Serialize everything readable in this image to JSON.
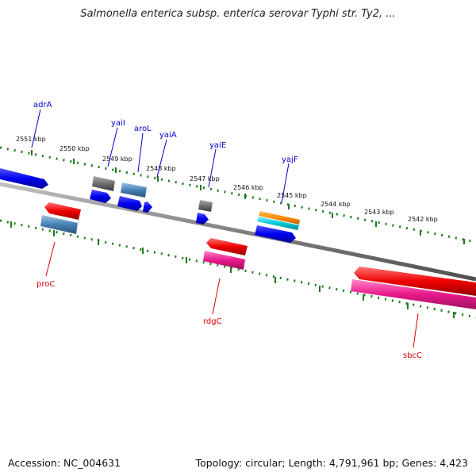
{
  "title": "Salmonella enterica subsp. enterica serovar Typhi str. Ty2, ...",
  "footer": {
    "accession": "Accession: NC_004631",
    "topology": "Topology: circular; Length: 4,791,961 bp; Genes: 4,423"
  },
  "colors": {
    "forward_label": "#0000cc",
    "reverse_label": "#dd0000",
    "ruler_tick": "#1f7a1f",
    "backbone": "#808080",
    "blue": "#0000ee",
    "steelblue": "#4682b4",
    "grey": "#707070",
    "red": "#ee0000",
    "pink": "#e8198a",
    "orange": "#ff8c00",
    "cyan": "#00c8d8"
  },
  "scale_labels": [
    "2551 kbp",
    "2550 kbp",
    "2549 kbp",
    "2548 kbp",
    "2547 kbp",
    "2546 kbp",
    "2545 kbp",
    "2544 kbp",
    "2543 kbp",
    "2542 kbp"
  ],
  "forward_genes": [
    {
      "name": "adrA",
      "color": "blue"
    },
    {
      "name": "yaiI",
      "color": "grey"
    },
    {
      "name": "aroL",
      "color": "steelblue"
    },
    {
      "name": "yaiA",
      "color": "blue"
    },
    {
      "name": "yaiE",
      "color": "grey"
    },
    {
      "name": "yajF",
      "color": "orange"
    }
  ],
  "reverse_genes": [
    {
      "name": "proC",
      "color": "red"
    },
    {
      "name": "rdgC",
      "color": "red"
    },
    {
      "name": "sbcC",
      "color": "red"
    }
  ]
}
